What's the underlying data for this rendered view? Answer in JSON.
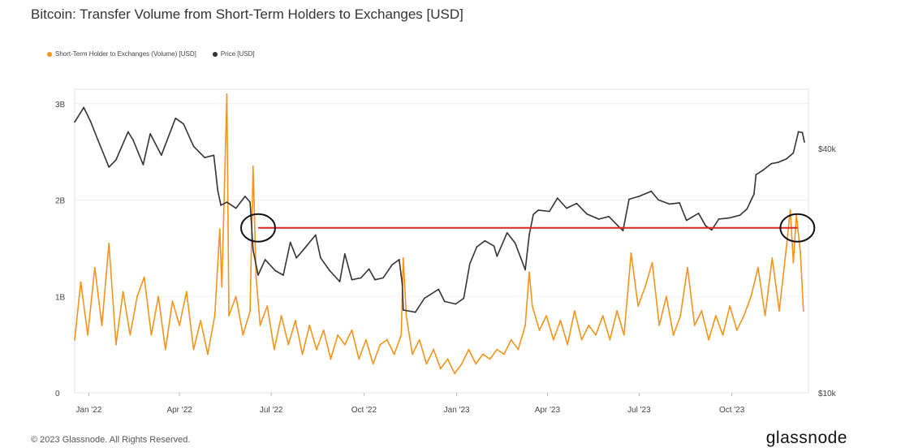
{
  "header": {
    "title": "Bitcoin: Transfer Volume from Short-Term Holders to Exchanges [USD]"
  },
  "legend": [
    {
      "label": "Short-Term Holder to Exchanges (Volume) [USD]",
      "color": "#f7931a"
    },
    {
      "label": "Price [USD]",
      "color": "#333333"
    }
  ],
  "footer": {
    "copyright": "© 2023 Glassnode. All Rights Reserved.",
    "brand": "glassnode"
  },
  "chart_data": {
    "type": "line",
    "title": "Bitcoin: Transfer Volume from Short-Term Holders to Exchanges [USD]",
    "x_ticks": [
      "Jan '22",
      "Apr '22",
      "Jul '22",
      "Oct '22",
      "Jan '23",
      "Apr '23",
      "Jul '23",
      "Oct '23"
    ],
    "x_range": [
      "2021-12-18",
      "2023-12-16"
    ],
    "y_left": {
      "ticks": [
        "0",
        "1B",
        "2B",
        "3B"
      ],
      "tick_values": [
        0,
        1,
        2,
        3
      ],
      "unit": "B USD",
      "range": [
        0,
        3.15
      ]
    },
    "y_right": {
      "scale": "log",
      "ticks": [
        "$10k",
        "$40k"
      ],
      "tick_values": [
        10000,
        40000
      ],
      "range": [
        10000,
        56000
      ]
    },
    "annotation": {
      "type": "horizontal-line",
      "color": "#dd2222",
      "from": "2022-06-18",
      "to": "2023-12-05",
      "price_usd": 25500,
      "circles_at": [
        "2022-06-18",
        "2023-12-05"
      ]
    },
    "series": [
      {
        "name": "Short-Term Holder to Exchanges (Volume) [USD]",
        "axis": "left",
        "color": "#f7931a",
        "points": [
          [
            "2021-12-18",
            0.55
          ],
          [
            "2021-12-24",
            1.15
          ],
          [
            "2021-12-31",
            0.6
          ],
          [
            "2022-01-07",
            1.3
          ],
          [
            "2022-01-14",
            0.7
          ],
          [
            "2022-01-21",
            1.55
          ],
          [
            "2022-01-28",
            0.5
          ],
          [
            "2022-02-04",
            1.05
          ],
          [
            "2022-02-11",
            0.6
          ],
          [
            "2022-02-18",
            1.0
          ],
          [
            "2022-02-25",
            1.2
          ],
          [
            "2022-03-04",
            0.6
          ],
          [
            "2022-03-11",
            1.0
          ],
          [
            "2022-03-18",
            0.45
          ],
          [
            "2022-03-25",
            0.95
          ],
          [
            "2022-04-01",
            0.7
          ],
          [
            "2022-04-08",
            1.05
          ],
          [
            "2022-04-15",
            0.45
          ],
          [
            "2022-04-22",
            0.75
          ],
          [
            "2022-04-29",
            0.4
          ],
          [
            "2022-05-06",
            0.8
          ],
          [
            "2022-05-11",
            1.7
          ],
          [
            "2022-05-13",
            1.1
          ],
          [
            "2022-05-18",
            3.1
          ],
          [
            "2022-05-20",
            0.8
          ],
          [
            "2022-05-27",
            1.0
          ],
          [
            "2022-06-03",
            0.6
          ],
          [
            "2022-06-10",
            0.85
          ],
          [
            "2022-06-13",
            2.35
          ],
          [
            "2022-06-16",
            1.2
          ],
          [
            "2022-06-20",
            0.7
          ],
          [
            "2022-06-27",
            0.9
          ],
          [
            "2022-07-04",
            0.45
          ],
          [
            "2022-07-11",
            0.8
          ],
          [
            "2022-07-18",
            0.5
          ],
          [
            "2022-07-25",
            0.75
          ],
          [
            "2022-08-01",
            0.4
          ],
          [
            "2022-08-08",
            0.7
          ],
          [
            "2022-08-15",
            0.45
          ],
          [
            "2022-08-22",
            0.65
          ],
          [
            "2022-08-29",
            0.35
          ],
          [
            "2022-09-05",
            0.6
          ],
          [
            "2022-09-12",
            0.5
          ],
          [
            "2022-09-19",
            0.65
          ],
          [
            "2022-09-26",
            0.35
          ],
          [
            "2022-10-03",
            0.55
          ],
          [
            "2022-10-10",
            0.3
          ],
          [
            "2022-10-17",
            0.5
          ],
          [
            "2022-10-24",
            0.55
          ],
          [
            "2022-10-31",
            0.4
          ],
          [
            "2022-11-07",
            0.6
          ],
          [
            "2022-11-09",
            1.4
          ],
          [
            "2022-11-12",
            0.8
          ],
          [
            "2022-11-18",
            0.4
          ],
          [
            "2022-11-25",
            0.55
          ],
          [
            "2022-12-02",
            0.3
          ],
          [
            "2022-12-09",
            0.45
          ],
          [
            "2022-12-16",
            0.25
          ],
          [
            "2022-12-23",
            0.35
          ],
          [
            "2022-12-30",
            0.2
          ],
          [
            "2023-01-06",
            0.3
          ],
          [
            "2023-01-13",
            0.45
          ],
          [
            "2023-01-20",
            0.3
          ],
          [
            "2023-01-27",
            0.4
          ],
          [
            "2023-02-03",
            0.35
          ],
          [
            "2023-02-10",
            0.45
          ],
          [
            "2023-02-17",
            0.4
          ],
          [
            "2023-02-24",
            0.55
          ],
          [
            "2023-03-03",
            0.45
          ],
          [
            "2023-03-10",
            0.7
          ],
          [
            "2023-03-14",
            1.25
          ],
          [
            "2023-03-17",
            0.9
          ],
          [
            "2023-03-24",
            0.65
          ],
          [
            "2023-03-31",
            0.8
          ],
          [
            "2023-04-07",
            0.55
          ],
          [
            "2023-04-14",
            0.75
          ],
          [
            "2023-04-21",
            0.5
          ],
          [
            "2023-04-28",
            0.85
          ],
          [
            "2023-05-05",
            0.55
          ],
          [
            "2023-05-12",
            0.7
          ],
          [
            "2023-05-19",
            0.6
          ],
          [
            "2023-05-26",
            0.8
          ],
          [
            "2023-06-02",
            0.55
          ],
          [
            "2023-06-09",
            0.85
          ],
          [
            "2023-06-16",
            0.6
          ],
          [
            "2023-06-23",
            1.45
          ],
          [
            "2023-06-30",
            0.9
          ],
          [
            "2023-07-07",
            1.1
          ],
          [
            "2023-07-14",
            1.35
          ],
          [
            "2023-07-21",
            0.7
          ],
          [
            "2023-07-28",
            1.0
          ],
          [
            "2023-08-04",
            0.6
          ],
          [
            "2023-08-11",
            0.8
          ],
          [
            "2023-08-18",
            1.3
          ],
          [
            "2023-08-25",
            0.7
          ],
          [
            "2023-09-01",
            0.85
          ],
          [
            "2023-09-08",
            0.55
          ],
          [
            "2023-09-15",
            0.8
          ],
          [
            "2023-09-22",
            0.6
          ],
          [
            "2023-09-29",
            0.9
          ],
          [
            "2023-10-06",
            0.65
          ],
          [
            "2023-10-13",
            0.8
          ],
          [
            "2023-10-20",
            1.0
          ],
          [
            "2023-10-27",
            1.3
          ],
          [
            "2023-11-03",
            0.8
          ],
          [
            "2023-11-10",
            1.4
          ],
          [
            "2023-11-17",
            0.85
          ],
          [
            "2023-11-24",
            1.5
          ],
          [
            "2023-11-28",
            1.9
          ],
          [
            "2023-12-01",
            1.35
          ],
          [
            "2023-12-04",
            1.85
          ],
          [
            "2023-12-08",
            1.45
          ],
          [
            "2023-12-11",
            0.85
          ]
        ]
      },
      {
        "name": "Price [USD]",
        "axis": "right",
        "color": "#333333",
        "points": [
          [
            "2021-12-18",
            46500
          ],
          [
            "2021-12-27",
            50500
          ],
          [
            "2022-01-03",
            46500
          ],
          [
            "2022-01-10",
            42000
          ],
          [
            "2022-01-21",
            36000
          ],
          [
            "2022-01-28",
            37500
          ],
          [
            "2022-02-09",
            44000
          ],
          [
            "2022-02-14",
            42000
          ],
          [
            "2022-02-24",
            36500
          ],
          [
            "2022-03-03",
            43500
          ],
          [
            "2022-03-14",
            38500
          ],
          [
            "2022-03-28",
            47500
          ],
          [
            "2022-04-05",
            46000
          ],
          [
            "2022-04-15",
            40500
          ],
          [
            "2022-04-26",
            38000
          ],
          [
            "2022-05-05",
            38500
          ],
          [
            "2022-05-09",
            31500
          ],
          [
            "2022-05-12",
            29000
          ],
          [
            "2022-05-18",
            29500
          ],
          [
            "2022-05-27",
            28500
          ],
          [
            "2022-06-05",
            30500
          ],
          [
            "2022-06-10",
            29500
          ],
          [
            "2022-06-13",
            22500
          ],
          [
            "2022-06-18",
            19500
          ],
          [
            "2022-06-25",
            21300
          ],
          [
            "2022-07-05",
            20000
          ],
          [
            "2022-07-13",
            19500
          ],
          [
            "2022-07-20",
            23500
          ],
          [
            "2022-07-26",
            21500
          ],
          [
            "2022-08-05",
            23000
          ],
          [
            "2022-08-14",
            24500
          ],
          [
            "2022-08-19",
            21500
          ],
          [
            "2022-08-28",
            20000
          ],
          [
            "2022-09-07",
            18800
          ],
          [
            "2022-09-12",
            22000
          ],
          [
            "2022-09-19",
            19000
          ],
          [
            "2022-09-28",
            19200
          ],
          [
            "2022-10-06",
            20200
          ],
          [
            "2022-10-12",
            19000
          ],
          [
            "2022-10-20",
            19200
          ],
          [
            "2022-10-29",
            20700
          ],
          [
            "2022-11-05",
            21300
          ],
          [
            "2022-11-08",
            18500
          ],
          [
            "2022-11-09",
            16000
          ],
          [
            "2022-11-21",
            15800
          ],
          [
            "2022-11-30",
            17100
          ],
          [
            "2022-12-14",
            18000
          ],
          [
            "2022-12-20",
            16800
          ],
          [
            "2022-12-31",
            16550
          ],
          [
            "2023-01-08",
            17100
          ],
          [
            "2023-01-14",
            20800
          ],
          [
            "2023-01-21",
            22900
          ],
          [
            "2023-01-29",
            23700
          ],
          [
            "2023-02-07",
            23000
          ],
          [
            "2023-02-10",
            21700
          ],
          [
            "2023-02-20",
            24800
          ],
          [
            "2023-02-28",
            23400
          ],
          [
            "2023-03-10",
            20100
          ],
          [
            "2023-03-14",
            24500
          ],
          [
            "2023-03-18",
            27500
          ],
          [
            "2023-03-23",
            28200
          ],
          [
            "2023-04-03",
            28000
          ],
          [
            "2023-04-11",
            30200
          ],
          [
            "2023-04-20",
            28500
          ],
          [
            "2023-04-30",
            29300
          ],
          [
            "2023-05-10",
            27600
          ],
          [
            "2023-05-22",
            26800
          ],
          [
            "2023-06-01",
            27200
          ],
          [
            "2023-06-10",
            25800
          ],
          [
            "2023-06-15",
            25100
          ],
          [
            "2023-06-21",
            30000
          ],
          [
            "2023-07-01",
            30500
          ],
          [
            "2023-07-13",
            31400
          ],
          [
            "2023-07-20",
            29900
          ],
          [
            "2023-07-31",
            29200
          ],
          [
            "2023-08-10",
            29400
          ],
          [
            "2023-08-17",
            26600
          ],
          [
            "2023-08-29",
            27700
          ],
          [
            "2023-09-05",
            25800
          ],
          [
            "2023-09-11",
            25200
          ],
          [
            "2023-09-18",
            26800
          ],
          [
            "2023-09-29",
            27000
          ],
          [
            "2023-10-09",
            27400
          ],
          [
            "2023-10-16",
            28400
          ],
          [
            "2023-10-23",
            30900
          ],
          [
            "2023-10-25",
            34500
          ],
          [
            "2023-11-01",
            35400
          ],
          [
            "2023-11-09",
            36700
          ],
          [
            "2023-11-16",
            37000
          ],
          [
            "2023-11-24",
            37700
          ],
          [
            "2023-12-01",
            39000
          ],
          [
            "2023-12-04",
            41900
          ],
          [
            "2023-12-06",
            44000
          ],
          [
            "2023-12-10",
            43800
          ],
          [
            "2023-12-12",
            41500
          ]
        ]
      }
    ]
  }
}
